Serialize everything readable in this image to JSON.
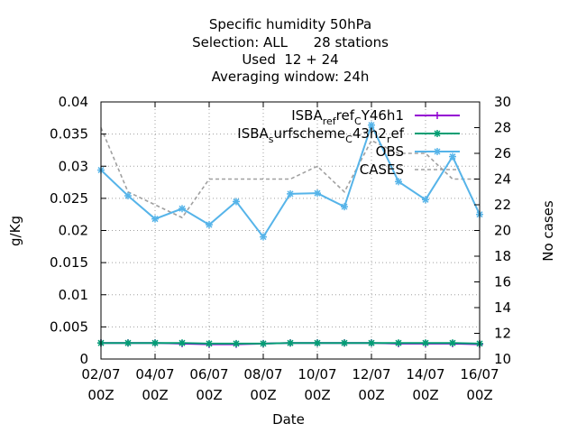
{
  "chart_data": {
    "type": "line",
    "title_lines": [
      "Specific humidity 50hPa",
      "Selection: ALL      28 stations",
      "Used  12 + 24",
      "Averaging window: 24h"
    ],
    "xlabel": "Date",
    "ylabel": "g/Kg",
    "y2label": "No cases",
    "x": [
      "02/07",
      "03/07",
      "04/07",
      "05/07",
      "06/07",
      "07/07",
      "08/07",
      "09/07",
      "10/07",
      "11/07",
      "12/07",
      "13/07",
      "14/07",
      "15/07",
      "16/07"
    ],
    "x_ticks": [
      {
        "index": 0,
        "line1": "02/07",
        "line2": "00Z"
      },
      {
        "index": 2,
        "line1": "04/07",
        "line2": "00Z"
      },
      {
        "index": 4,
        "line1": "06/07",
        "line2": "00Z"
      },
      {
        "index": 6,
        "line1": "08/07",
        "line2": "00Z"
      },
      {
        "index": 8,
        "line1": "10/07",
        "line2": "00Z"
      },
      {
        "index": 10,
        "line1": "12/07",
        "line2": "00Z"
      },
      {
        "index": 12,
        "line1": "14/07",
        "line2": "00Z"
      },
      {
        "index": 14,
        "line1": "16/07",
        "line2": "00Z"
      }
    ],
    "ylim": [
      0,
      0.04
    ],
    "y_ticks": [
      "0",
      "0.005",
      "0.01",
      "0.015",
      "0.02",
      "0.025",
      "0.03",
      "0.035",
      "0.04"
    ],
    "y2lim": [
      10,
      30
    ],
    "y2_ticks": [
      "10",
      "12",
      "14",
      "16",
      "18",
      "20",
      "22",
      "24",
      "26",
      "28",
      "30"
    ],
    "grid": true,
    "legend_position": "top-right",
    "series": [
      {
        "name": "ISBA_ref_CY46h1",
        "legend_parts": [
          [
            "ISBA",
            "n"
          ],
          [
            "ref",
            "s"
          ],
          [
            "ref",
            "n"
          ],
          [
            "C",
            "s"
          ],
          [
            "Y46h1",
            "n"
          ]
        ],
        "legend_text": [
          "ISBA",
          "ref",
          "C",
          "Y46h1"
        ],
        "color": "#9400d3",
        "marker": "plus",
        "axis": "y1",
        "values": [
          0.0025,
          0.0025,
          0.0025,
          0.0024,
          0.0023,
          0.0023,
          0.0024,
          0.0025,
          0.0025,
          0.0025,
          0.0025,
          0.0024,
          0.0024,
          0.0024,
          0.0023
        ]
      },
      {
        "name": "ISBA_surfscheme_C43h2_ref",
        "legend_parts": [
          [
            "ISBA",
            "n"
          ],
          [
            "s",
            "s"
          ],
          [
            "urfscheme",
            "n"
          ],
          [
            "C",
            "s"
          ],
          [
            "43h2",
            "n"
          ],
          [
            "r",
            "s"
          ],
          [
            "ef",
            "n"
          ]
        ],
        "legend_text": [
          "ISBA",
          "s",
          "urfscheme",
          "C",
          "43h2",
          "r",
          "ef"
        ],
        "color": "#009e73",
        "marker": "star",
        "axis": "y1",
        "values": [
          0.0025,
          0.0025,
          0.0025,
          0.0025,
          0.0024,
          0.0024,
          0.0024,
          0.0025,
          0.0025,
          0.0025,
          0.0025,
          0.0025,
          0.0025,
          0.0025,
          0.0024
        ]
      },
      {
        "name": "OBS",
        "legend_text": [
          "OBS"
        ],
        "color": "#56b4e9",
        "marker": "star",
        "axis": "y1",
        "values": [
          0.0294,
          0.0254,
          0.0218,
          0.0234,
          0.0209,
          0.0245,
          0.019,
          0.0257,
          0.0258,
          0.0237,
          0.0364,
          0.0276,
          0.0248,
          0.0315,
          0.0225
        ]
      },
      {
        "name": "CASES",
        "legend_text": [
          "CASES"
        ],
        "color": "#a0a0a0",
        "marker": "none",
        "dashed": true,
        "axis": "y2",
        "values": [
          28,
          23,
          22,
          21,
          24,
          24,
          24,
          24,
          25,
          23,
          27,
          26,
          26,
          24,
          24
        ]
      }
    ]
  }
}
